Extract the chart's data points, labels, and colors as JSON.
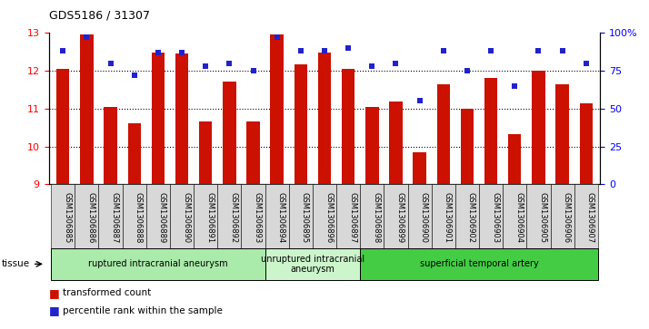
{
  "title": "GDS5186 / 31307",
  "samples": [
    "GSM1306885",
    "GSM1306886",
    "GSM1306887",
    "GSM1306888",
    "GSM1306889",
    "GSM1306890",
    "GSM1306891",
    "GSM1306892",
    "GSM1306893",
    "GSM1306894",
    "GSM1306895",
    "GSM1306896",
    "GSM1306897",
    "GSM1306898",
    "GSM1306899",
    "GSM1306900",
    "GSM1306901",
    "GSM1306902",
    "GSM1306903",
    "GSM1306904",
    "GSM1306905",
    "GSM1306906",
    "GSM1306907"
  ],
  "transformed_count": [
    12.05,
    12.95,
    11.05,
    10.62,
    12.48,
    12.45,
    10.65,
    11.72,
    10.65,
    12.95,
    12.18,
    12.48,
    12.05,
    11.05,
    11.18,
    9.85,
    11.65,
    11.0,
    11.8,
    10.32,
    12.0,
    11.65,
    11.15
  ],
  "percentile_rank": [
    88,
    97,
    80,
    72,
    87,
    87,
    78,
    80,
    75,
    97,
    88,
    88,
    90,
    78,
    80,
    55,
    88,
    75,
    88,
    65,
    88,
    88,
    80
  ],
  "groups": [
    {
      "label": "ruptured intracranial aneurysm",
      "start": 0,
      "end": 9,
      "color": "#aaeaaa"
    },
    {
      "label": "unruptured intracranial\naneurysm",
      "start": 9,
      "end": 13,
      "color": "#ccf5cc"
    },
    {
      "label": "superficial temporal artery",
      "start": 13,
      "end": 23,
      "color": "#44cc44"
    }
  ],
  "ylim_left": [
    9,
    13
  ],
  "ylim_right": [
    0,
    100
  ],
  "yticks_left": [
    9,
    10,
    11,
    12,
    13
  ],
  "yticks_right": [
    0,
    25,
    50,
    75,
    100
  ],
  "ytick_labels_right": [
    "0",
    "25",
    "50",
    "75",
    "100%"
  ],
  "bar_color": "#cc1100",
  "dot_color": "#2222cc",
  "bar_bottom": 9,
  "tick_bg_color": "#d8d8d8"
}
